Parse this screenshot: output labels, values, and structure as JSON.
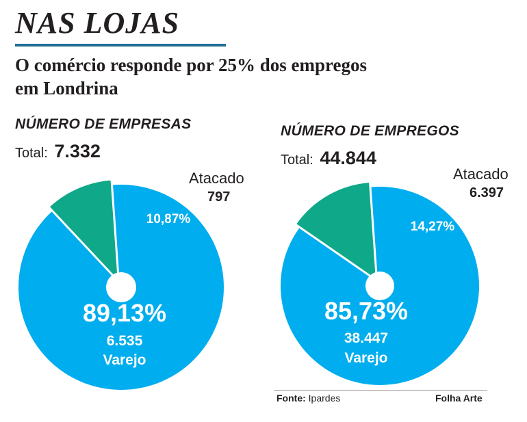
{
  "header": {
    "headline": "NAS LOJAS",
    "subtitle_line1": "O comércio responde por 25% dos empregos",
    "subtitle_line2": "em Londrina"
  },
  "colors": {
    "varejo": "#00adee",
    "atacado": "#0fa888",
    "rule": "#1f6f96"
  },
  "chart_data": [
    {
      "type": "pie",
      "title": "NÚMERO DE EMPRESAS",
      "total_label": "Total:",
      "total_value": "7.332",
      "slices": [
        {
          "name": "Atacado",
          "value": 797,
          "value_label": "797",
          "percent": 10.87,
          "percent_label": "10,87%"
        },
        {
          "name": "Varejo",
          "value": 6535,
          "value_label": "6.535",
          "percent": 89.13,
          "percent_label": "89,13%"
        }
      ]
    },
    {
      "type": "pie",
      "title": "NÚMERO DE EMPREGOS",
      "total_label": "Total:",
      "total_value": "44.844",
      "slices": [
        {
          "name": "Atacado",
          "value": 6397,
          "value_label": "6.397",
          "percent": 14.27,
          "percent_label": "14,27%"
        },
        {
          "name": "Varejo",
          "value": 38447,
          "value_label": "38.447",
          "percent": 85.73,
          "percent_label": "85,73%"
        }
      ]
    }
  ],
  "footer": {
    "source_label": "Fonte:",
    "source_value": "Ipardes",
    "credit": "Folha Arte"
  }
}
